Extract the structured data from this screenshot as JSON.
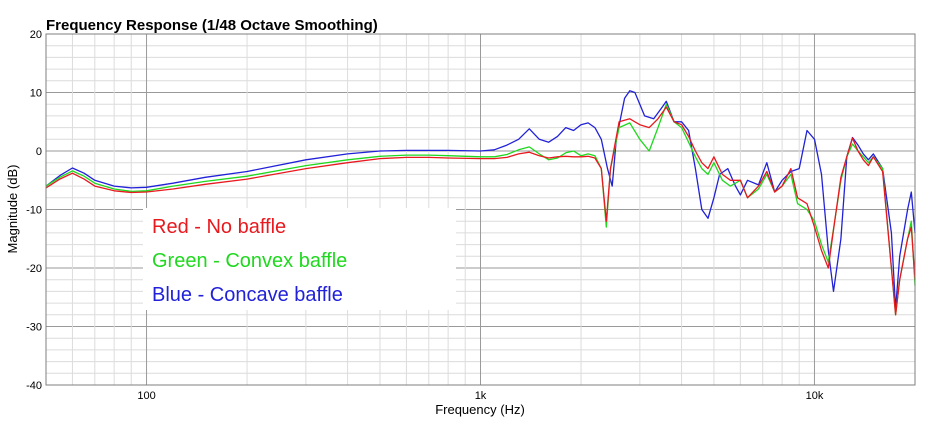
{
  "chart_data": {
    "type": "line",
    "title": "Frequency Response (1/48 Octave Smoothing)",
    "xlabel": "Frequency (Hz)",
    "ylabel": "Magnitude (dB)",
    "x_scale": "log",
    "xlim": [
      50,
      20000
    ],
    "ylim": [
      -40,
      20
    ],
    "x_ticks": [
      {
        "value": 100,
        "label": "100"
      },
      {
        "value": 1000,
        "label": "1k"
      },
      {
        "value": 10000,
        "label": "10k"
      }
    ],
    "y_ticks": [
      {
        "value": 20,
        "label": "20"
      },
      {
        "value": 10,
        "label": "10"
      },
      {
        "value": 0,
        "label": "0"
      },
      {
        "value": -10,
        "label": "-10"
      },
      {
        "value": -20,
        "label": "-20"
      },
      {
        "value": -30,
        "label": "-30"
      },
      {
        "value": -40,
        "label": "-40"
      }
    ],
    "grid": true,
    "legend": [
      {
        "text": "Red - No baffle",
        "color": "#e8191f"
      },
      {
        "text": "Green - Convex baffle",
        "color": "#1fd81f"
      },
      {
        "text": "Blue - Concave baffle",
        "color": "#2121d9"
      }
    ],
    "series": [
      {
        "color": "#2121d9",
        "points": [
          [
            50,
            -6
          ],
          [
            55,
            -4.2
          ],
          [
            60,
            -2.9
          ],
          [
            65,
            -3.8
          ],
          [
            70,
            -5
          ],
          [
            80,
            -6
          ],
          [
            90,
            -6.3
          ],
          [
            100,
            -6.2
          ],
          [
            120,
            -5.5
          ],
          [
            150,
            -4.5
          ],
          [
            200,
            -3.5
          ],
          [
            300,
            -1.5
          ],
          [
            400,
            -0.5
          ],
          [
            500,
            0
          ],
          [
            600,
            0.1
          ],
          [
            700,
            0.1
          ],
          [
            800,
            0.1
          ],
          [
            1000,
            0
          ],
          [
            1100,
            0.2
          ],
          [
            1200,
            1
          ],
          [
            1300,
            2
          ],
          [
            1400,
            3.8
          ],
          [
            1500,
            2
          ],
          [
            1600,
            1.5
          ],
          [
            1700,
            2.5
          ],
          [
            1800,
            4
          ],
          [
            1900,
            3.5
          ],
          [
            2000,
            4.5
          ],
          [
            2100,
            4.8
          ],
          [
            2200,
            4
          ],
          [
            2300,
            2
          ],
          [
            2400,
            -3
          ],
          [
            2480,
            -6
          ],
          [
            2550,
            2
          ],
          [
            2700,
            9
          ],
          [
            2800,
            10.3
          ],
          [
            2900,
            10
          ],
          [
            3000,
            8
          ],
          [
            3100,
            6
          ],
          [
            3300,
            5.5
          ],
          [
            3500,
            7.5
          ],
          [
            3600,
            8.5
          ],
          [
            3800,
            5
          ],
          [
            4000,
            5
          ],
          [
            4200,
            3.5
          ],
          [
            4400,
            -3
          ],
          [
            4600,
            -10
          ],
          [
            4800,
            -11.5
          ],
          [
            5000,
            -8
          ],
          [
            5200,
            -4
          ],
          [
            5500,
            -3
          ],
          [
            5800,
            -6
          ],
          [
            6000,
            -7.5
          ],
          [
            6300,
            -5
          ],
          [
            6800,
            -5.8
          ],
          [
            7200,
            -2
          ],
          [
            7600,
            -7
          ],
          [
            8000,
            -5
          ],
          [
            8500,
            -3.5
          ],
          [
            9000,
            -3
          ],
          [
            9500,
            3.5
          ],
          [
            10000,
            2
          ],
          [
            10500,
            -4
          ],
          [
            11000,
            -17
          ],
          [
            11400,
            -24
          ],
          [
            12000,
            -15
          ],
          [
            12500,
            -1
          ],
          [
            13000,
            2.3
          ],
          [
            13500,
            1
          ],
          [
            14000,
            -0.5
          ],
          [
            14500,
            -1.5
          ],
          [
            15000,
            -0.5
          ],
          [
            16000,
            -3
          ],
          [
            17000,
            -14
          ],
          [
            17500,
            -27
          ],
          [
            18000,
            -18
          ],
          [
            19000,
            -10
          ],
          [
            19500,
            -7
          ],
          [
            20000,
            -14
          ]
        ]
      },
      {
        "color": "#1fd81f",
        "points": [
          [
            50,
            -6
          ],
          [
            55,
            -4.5
          ],
          [
            60,
            -3.4
          ],
          [
            65,
            -4.3
          ],
          [
            70,
            -5.5
          ],
          [
            80,
            -6.5
          ],
          [
            90,
            -6.9
          ],
          [
            100,
            -6.8
          ],
          [
            120,
            -6
          ],
          [
            150,
            -5.2
          ],
          [
            200,
            -4.3
          ],
          [
            300,
            -2.5
          ],
          [
            400,
            -1.5
          ],
          [
            500,
            -0.9
          ],
          [
            600,
            -0.7
          ],
          [
            700,
            -0.7
          ],
          [
            800,
            -0.8
          ],
          [
            1000,
            -1
          ],
          [
            1100,
            -1
          ],
          [
            1200,
            -0.6
          ],
          [
            1300,
            0.2
          ],
          [
            1400,
            0.7
          ],
          [
            1500,
            -0.5
          ],
          [
            1600,
            -1.5
          ],
          [
            1700,
            -1.2
          ],
          [
            1800,
            -0.3
          ],
          [
            1900,
            0
          ],
          [
            2000,
            -0.8
          ],
          [
            2100,
            -0.5
          ],
          [
            2200,
            -0.8
          ],
          [
            2300,
            -3
          ],
          [
            2380,
            -13
          ],
          [
            2450,
            -3
          ],
          [
            2600,
            4
          ],
          [
            2800,
            4.8
          ],
          [
            3000,
            2
          ],
          [
            3200,
            0
          ],
          [
            3400,
            4
          ],
          [
            3600,
            8
          ],
          [
            3800,
            5
          ],
          [
            4000,
            4
          ],
          [
            4200,
            1.5
          ],
          [
            4400,
            -1
          ],
          [
            4600,
            -3
          ],
          [
            4800,
            -4
          ],
          [
            5000,
            -2
          ],
          [
            5300,
            -5
          ],
          [
            5600,
            -6
          ],
          [
            6000,
            -5
          ],
          [
            6300,
            -8
          ],
          [
            6800,
            -6.5
          ],
          [
            7200,
            -4
          ],
          [
            7600,
            -7
          ],
          [
            8000,
            -6
          ],
          [
            8500,
            -4
          ],
          [
            8900,
            -9
          ],
          [
            9500,
            -10
          ],
          [
            10000,
            -12
          ],
          [
            10500,
            -16
          ],
          [
            11000,
            -19
          ],
          [
            11500,
            -12
          ],
          [
            12000,
            -5
          ],
          [
            12500,
            -1
          ],
          [
            13000,
            1.2
          ],
          [
            13500,
            0
          ],
          [
            14000,
            -1
          ],
          [
            14500,
            -2
          ],
          [
            15000,
            -1
          ],
          [
            16000,
            -3
          ],
          [
            17000,
            -20
          ],
          [
            17500,
            -28
          ],
          [
            18000,
            -22
          ],
          [
            19000,
            -15
          ],
          [
            19500,
            -12
          ],
          [
            20000,
            -23
          ]
        ]
      },
      {
        "color": "#e8191f",
        "points": [
          [
            50,
            -6.3
          ],
          [
            55,
            -4.8
          ],
          [
            60,
            -3.8
          ],
          [
            65,
            -4.8
          ],
          [
            70,
            -6
          ],
          [
            80,
            -6.8
          ],
          [
            90,
            -7.1
          ],
          [
            100,
            -7
          ],
          [
            120,
            -6.5
          ],
          [
            150,
            -5.7
          ],
          [
            200,
            -4.8
          ],
          [
            300,
            -3
          ],
          [
            400,
            -2
          ],
          [
            500,
            -1.3
          ],
          [
            600,
            -1.1
          ],
          [
            700,
            -1.1
          ],
          [
            800,
            -1.2
          ],
          [
            1000,
            -1.3
          ],
          [
            1100,
            -1.3
          ],
          [
            1200,
            -1.1
          ],
          [
            1300,
            -0.5
          ],
          [
            1400,
            -0.2
          ],
          [
            1500,
            -0.8
          ],
          [
            1600,
            -1.2
          ],
          [
            1700,
            -1
          ],
          [
            1800,
            -0.9
          ],
          [
            1900,
            -1
          ],
          [
            2000,
            -1
          ],
          [
            2100,
            -0.9
          ],
          [
            2200,
            -1.2
          ],
          [
            2300,
            -3
          ],
          [
            2380,
            -12
          ],
          [
            2450,
            -3
          ],
          [
            2600,
            5
          ],
          [
            2800,
            5.5
          ],
          [
            3000,
            4.5
          ],
          [
            3200,
            4
          ],
          [
            3400,
            5.5
          ],
          [
            3600,
            7.5
          ],
          [
            3800,
            5
          ],
          [
            4000,
            4.5
          ],
          [
            4200,
            2.5
          ],
          [
            4400,
            0
          ],
          [
            4600,
            -2
          ],
          [
            4800,
            -3
          ],
          [
            5000,
            -1
          ],
          [
            5300,
            -4
          ],
          [
            5600,
            -5
          ],
          [
            6000,
            -5
          ],
          [
            6300,
            -8
          ],
          [
            6800,
            -6
          ],
          [
            7200,
            -3.5
          ],
          [
            7600,
            -7
          ],
          [
            8000,
            -6
          ],
          [
            8500,
            -3
          ],
          [
            8900,
            -8
          ],
          [
            9500,
            -9
          ],
          [
            10000,
            -13
          ],
          [
            10500,
            -17
          ],
          [
            11000,
            -20
          ],
          [
            11500,
            -12
          ],
          [
            12000,
            -4.5
          ],
          [
            12500,
            -1
          ],
          [
            13000,
            2.2
          ],
          [
            13500,
            0
          ],
          [
            14000,
            -1.5
          ],
          [
            14500,
            -2.5
          ],
          [
            15000,
            -1
          ],
          [
            16000,
            -3.5
          ],
          [
            17000,
            -20
          ],
          [
            17500,
            -28
          ],
          [
            18000,
            -22
          ],
          [
            19000,
            -15
          ],
          [
            19500,
            -13
          ],
          [
            20000,
            -22
          ]
        ]
      }
    ]
  }
}
